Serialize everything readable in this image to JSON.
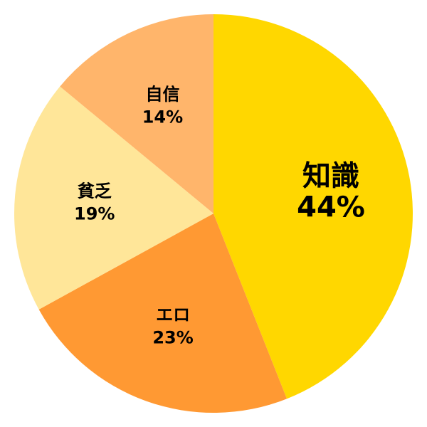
{
  "chart_data": {
    "type": "pie",
    "start": "top",
    "direction": "clockwise",
    "slices": [
      {
        "label": "知識",
        "value": 44,
        "value_label": "44%",
        "color": "#FFD700",
        "emphasized": true
      },
      {
        "label": "エロ",
        "value": 23,
        "value_label": "23%",
        "color": "#FF9933"
      },
      {
        "label": "貧乏",
        "value": 19,
        "value_label": "19%",
        "color": "#FFE699"
      },
      {
        "label": "自信",
        "value": 14,
        "value_label": "14%",
        "color": "#FFB56B"
      }
    ]
  }
}
